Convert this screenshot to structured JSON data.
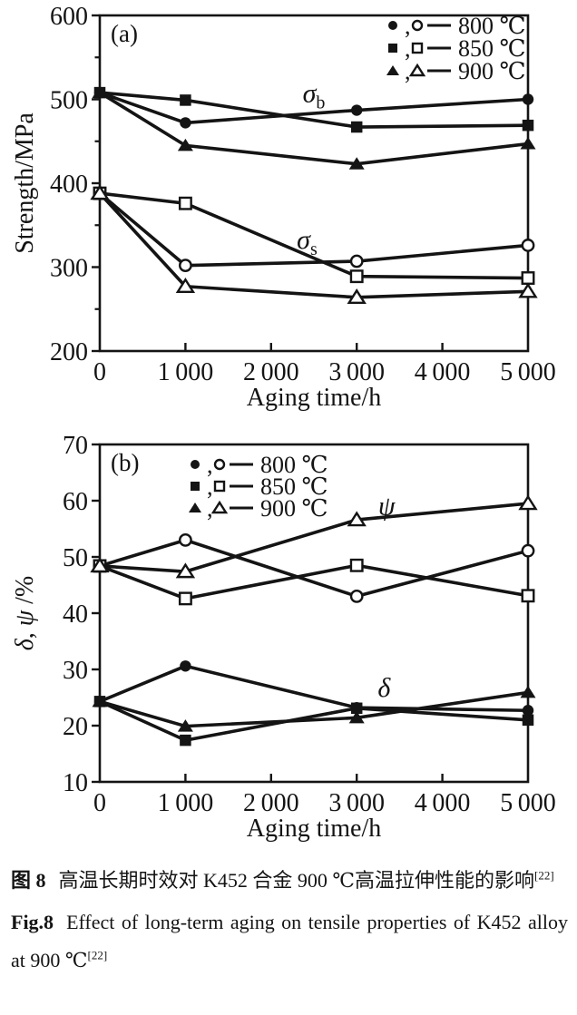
{
  "page": {
    "background": "#ffffff",
    "ink": "#141414"
  },
  "figure": {
    "caption": {
      "zh_label": "图 8",
      "zh_text": "高温长期时效对 K452 合金 900 ℃高温拉伸性能的影响",
      "en_label": "Fig.8",
      "en_text": "Effect of long-term aging on tensile properties of K452 alloy at 900 ℃",
      "ref": "[22]"
    }
  },
  "chart_data": [
    {
      "type": "line",
      "panel": "(a)",
      "xlabel": "Aging time/h",
      "ylabel": "Strength/MPa",
      "ylabel_parts": [
        {
          "t": "Strength/MPa",
          "i": false
        }
      ],
      "xlim": [
        0,
        5000
      ],
      "ylim": [
        200,
        600
      ],
      "x_ticks": [
        0,
        1000,
        2000,
        3000,
        4000,
        5000
      ],
      "x_tick_labels": [
        "0",
        "1 000",
        "2 000",
        "3 000",
        "4 000",
        "5 000"
      ],
      "y_ticks": [
        200,
        300,
        400,
        500,
        600
      ],
      "y_tick_labels": [
        "200",
        "300",
        "400",
        "500",
        "600"
      ],
      "y_minor_step": 50,
      "grid": false,
      "legend_pos": "top-right",
      "legend": [
        {
          "filled": "circle",
          "open": "circle",
          "label": "800 ℃"
        },
        {
          "filled": "square",
          "open": "square",
          "label": "850 ℃"
        },
        {
          "filled": "triangle",
          "open": "triangle",
          "label": "900 ℃"
        }
      ],
      "annotations": [
        {
          "text": "σ",
          "sub": "b",
          "x": 2500,
          "y": 497
        },
        {
          "text": "σ",
          "sub": "s",
          "x": 2420,
          "y": 322
        }
      ],
      "x": [
        0,
        1000,
        3000,
        5000
      ],
      "series": [
        {
          "key": "sigma-b-800",
          "name": "σb 800 ℃",
          "marker": "circle",
          "fill": "filled",
          "values": [
            508,
            472,
            487,
            500
          ]
        },
        {
          "key": "sigma-b-900",
          "name": "σb 900 ℃",
          "marker": "triangle",
          "fill": "filled",
          "values": [
            508,
            445,
            423,
            447
          ]
        },
        {
          "key": "sigma-b-850",
          "name": "σb 850 ℃",
          "marker": "square",
          "fill": "filled",
          "values": [
            508,
            499,
            467,
            469
          ]
        },
        {
          "key": "sigma-s-800",
          "name": "σs 800 ℃",
          "marker": "circle",
          "fill": "open",
          "values": [
            388,
            302,
            307,
            326
          ]
        },
        {
          "key": "sigma-s-850",
          "name": "σs 850 ℃",
          "marker": "square",
          "fill": "open",
          "values": [
            388,
            376,
            289,
            287
          ]
        },
        {
          "key": "sigma-s-900",
          "name": "σs 900 ℃",
          "marker": "triangle",
          "fill": "open",
          "values": [
            388,
            277,
            264,
            271
          ]
        }
      ]
    },
    {
      "type": "line",
      "panel": "(b)",
      "xlabel": "Aging time/h",
      "ylabel": "δ, ψ /%",
      "ylabel_parts": [
        {
          "t": "δ",
          "i": true
        },
        {
          "t": ", ",
          "i": false
        },
        {
          "t": "ψ",
          "i": true
        },
        {
          "t": " /%",
          "i": false
        }
      ],
      "xlim": [
        0,
        5000
      ],
      "ylim": [
        10,
        70
      ],
      "x_ticks": [
        0,
        1000,
        2000,
        3000,
        4000,
        5000
      ],
      "x_tick_labels": [
        "0",
        "1 000",
        "2 000",
        "3 000",
        "4 000",
        "5 000"
      ],
      "y_ticks": [
        10,
        20,
        30,
        40,
        50,
        60,
        70
      ],
      "y_tick_labels": [
        "10",
        "20",
        "30",
        "40",
        "50",
        "60",
        "70"
      ],
      "y_minor_step": null,
      "grid": false,
      "legend_pos": "upper-left-inset",
      "legend": [
        {
          "filled": "circle",
          "open": "circle",
          "label": "800 ℃"
        },
        {
          "filled": "square",
          "open": "square",
          "label": "850 ℃"
        },
        {
          "filled": "triangle",
          "open": "triangle",
          "label": "900 ℃"
        }
      ],
      "annotations": [
        {
          "text": "ψ",
          "sub": "",
          "x": 3350,
          "y": 57.5
        },
        {
          "text": "δ",
          "sub": "",
          "x": 3320,
          "y": 25.2
        }
      ],
      "x": [
        0,
        1000,
        3000,
        5000
      ],
      "series": [
        {
          "key": "delta-800",
          "name": "δ 800 ℃",
          "marker": "circle",
          "fill": "filled",
          "values": [
            24.3,
            30.6,
            23.2,
            22.7
          ]
        },
        {
          "key": "delta-900",
          "name": "δ 900 ℃",
          "marker": "triangle",
          "fill": "filled",
          "values": [
            24.3,
            19.9,
            21.4,
            25.9
          ]
        },
        {
          "key": "delta-850",
          "name": "δ 850 ℃",
          "marker": "square",
          "fill": "filled",
          "values": [
            24.3,
            17.4,
            23.1,
            21.0
          ]
        },
        {
          "key": "psi-800",
          "name": "ψ 800 ℃",
          "marker": "circle",
          "fill": "open",
          "values": [
            48.4,
            53.0,
            43.0,
            51.1
          ]
        },
        {
          "key": "psi-850",
          "name": "ψ 850 ℃",
          "marker": "square",
          "fill": "open",
          "values": [
            48.4,
            42.6,
            48.5,
            43.1
          ]
        },
        {
          "key": "psi-900",
          "name": "ψ 900 ℃",
          "marker": "triangle",
          "fill": "open",
          "values": [
            48.4,
            47.4,
            56.6,
            59.5
          ]
        }
      ]
    }
  ]
}
